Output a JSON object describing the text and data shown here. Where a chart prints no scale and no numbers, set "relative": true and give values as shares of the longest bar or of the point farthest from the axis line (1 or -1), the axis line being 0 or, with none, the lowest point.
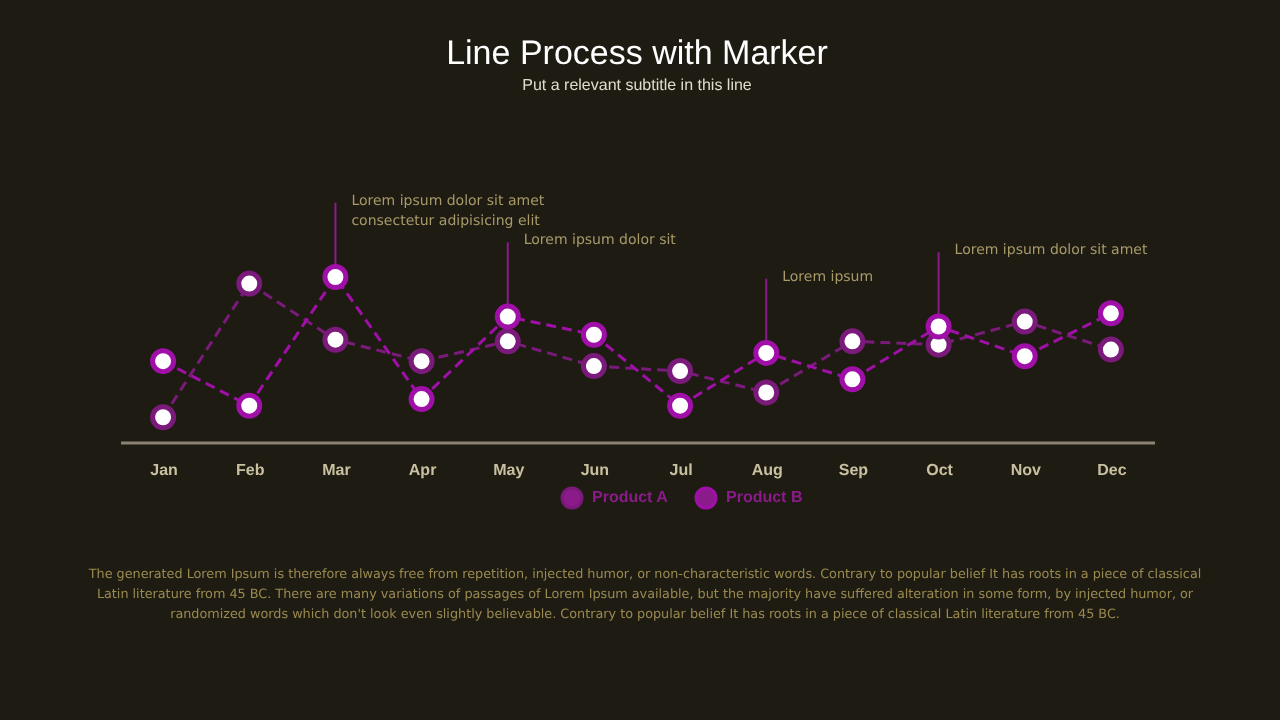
{
  "chart_data": {
    "type": "line",
    "title": "Line Process with Marker",
    "subtitle": "Put a relevant subtitle in this line",
    "relative": true,
    "marker": "circle",
    "line_style": "dashed",
    "legend": "bottom",
    "grid": false,
    "categories": [
      "Jan",
      "Feb",
      "Mar",
      "Apr",
      "May",
      "Jun",
      "Jul",
      "Aug",
      "Sep",
      "Oct",
      "Nov",
      "Dec"
    ],
    "series": [
      {
        "name": "Product A",
        "color": "#7a1a7a",
        "values": [
          0.15,
          0.96,
          0.62,
          0.49,
          0.61,
          0.46,
          0.43,
          0.3,
          0.61,
          0.59,
          0.73,
          0.56
        ]
      },
      {
        "name": "Product B",
        "color": "#a010a8",
        "values": [
          0.49,
          0.22,
          1,
          0.26,
          0.76,
          0.65,
          0.22,
          0.54,
          0.38,
          0.7,
          0.52,
          0.78
        ]
      }
    ],
    "annotations": [
      {
        "text": "Lorem ipsum dolor sit amet\nconsectetur adipisicing elit",
        "x": "Mar",
        "y": 1
      },
      {
        "text": "Lorem ipsum dolor sit",
        "x": "May",
        "y": 0.76
      },
      {
        "text": "Lorem ipsum",
        "x": "Aug",
        "y": 0.54
      },
      {
        "text": "Lorem ipsum dolor sit amet",
        "x": "Oct",
        "y": 0.7
      },
      "The generated Lorem Ipsum is therefore always free from repetition, injected humor, or non-characteristic words. Contrary to popular belief It has roots in a piece of classical Latin literature from 45 BC. There are many variations of passages of Lorem Ipsum available, but the majority have suffered alteration in some form, by injected humor, or randomized words which don't look even slightly believable. Contrary to popular belief It has roots in a piece of classical Latin literature from 45 BC."
    ]
  }
}
